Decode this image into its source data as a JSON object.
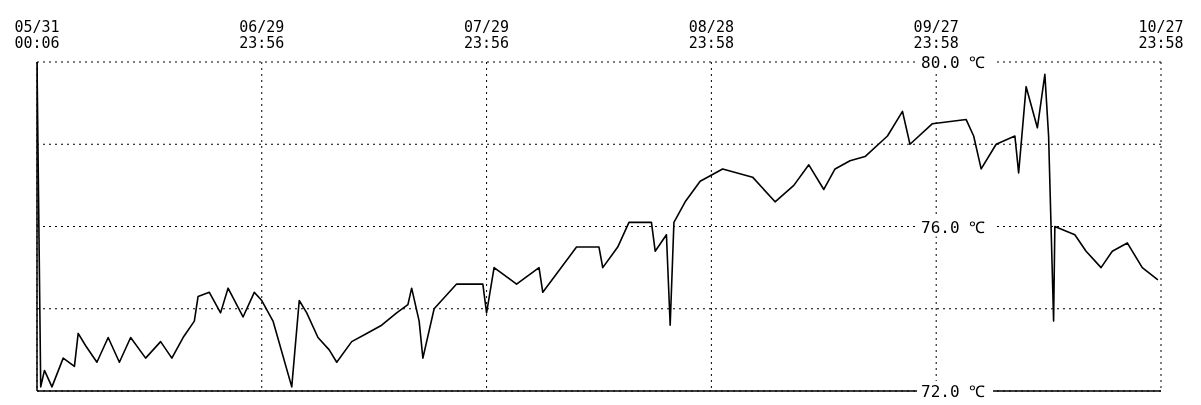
{
  "chart_data": {
    "type": "line",
    "x": [
      "--05-31T00:06",
      "--05-31T12:00",
      "--06-01T00:00",
      "--06-02T00:00",
      "--06-03T12:00",
      "--06-05T00:00",
      "--06-05T12:00",
      "--06-06T12:00",
      "--06-08T00:00",
      "--06-09T12:00",
      "--06-11T00:00",
      "--06-12T12:00",
      "--06-14T12:00",
      "--06-16T12:00",
      "--06-18T00:00",
      "--06-19T12:00",
      "--06-21T00:00",
      "--06-21T12:00",
      "--06-23T00:00",
      "--06-24T12:00",
      "--06-25T12:00",
      "--06-27T12:00",
      "--06-29T00:00",
      "--06-30T00:00",
      "--07-01T12:00",
      "--07-04T00:00",
      "--07-05T00:00",
      "--07-06T00:00",
      "--07-07T12:00",
      "--07-09T00:00",
      "--07-10T00:00",
      "--07-12T00:00",
      "--07-14T00:00",
      "--07-16T00:00",
      "--07-18T00:00",
      "--07-19T12:00",
      "--07-20T00:00",
      "--07-21T00:00",
      "--07-21T12:00",
      "--07-23T00:00",
      "--07-26T00:00",
      "--07-29T12:00",
      "--07-30T00:00",
      "--07-31T00:00",
      "--08-03T00:00",
      "--08-06T00:00",
      "--08-06T12:00",
      "--08-11T00:00",
      "--08-14T00:00",
      "--08-14T12:00",
      "--08-16T12:00",
      "--08-18T00:00",
      "--08-21T00:00",
      "--08-21T12:00",
      "--08-23T00:00",
      "--08-23T12:00",
      "--08-24T00:00",
      "--08-25T12:00",
      "--08-27T12:00",
      "--08-30T12:00",
      "--09-03T12:00",
      "--09-06T12:00",
      "--09-09T00:00",
      "--09-11T00:00",
      "--09-13T00:00",
      "--09-14T12:00",
      "--09-16T12:00",
      "--09-18T12:00",
      "--09-21T12:00",
      "--09-23T12:00",
      "--09-24T12:00",
      "--09-27T12:00",
      "--10-02T00:00",
      "--10-03T00:00",
      "--10-04T00:00",
      "--10-06T00:00",
      "--10-08T12:00",
      "--10-09T00:00",
      "--10-10T00:00",
      "--10-11T12:00",
      "--10-12T12:00",
      "--10-13T00:00",
      "--10-13T16:00",
      "--10-13T20:00",
      "--10-16T12:00",
      "--10-18T00:00",
      "--10-20T00:00",
      "--10-21T12:00",
      "--10-23T12:00",
      "--10-25T12:00",
      "--10-27T14:00"
    ],
    "series": [
      {
        "color": "#000000",
        "values": [
          80.0,
          72.1,
          72.5,
          72.1,
          72.8,
          72.6,
          73.4,
          73.1,
          72.7,
          73.3,
          72.7,
          73.3,
          72.8,
          73.2,
          72.8,
          73.3,
          73.7,
          74.3,
          74.4,
          73.9,
          74.5,
          73.8,
          74.4,
          74.2,
          73.7,
          72.1,
          74.2,
          73.9,
          73.3,
          73.0,
          72.7,
          73.2,
          73.4,
          73.6,
          73.9,
          74.1,
          74.5,
          73.7,
          72.8,
          74.0,
          74.6,
          74.6,
          73.9,
          75.0,
          74.6,
          75.0,
          74.4,
          75.5,
          75.5,
          75.0,
          75.5,
          76.1,
          76.1,
          75.4,
          75.8,
          73.6,
          76.1,
          76.6,
          77.1,
          77.4,
          77.2,
          76.6,
          77.0,
          77.5,
          76.9,
          77.4,
          77.6,
          77.7,
          78.2,
          78.8,
          78.0,
          78.5,
          78.6,
          78.2,
          77.4,
          78.0,
          78.2,
          77.3,
          79.4,
          78.4,
          79.7,
          78.2,
          73.7,
          76.0,
          75.8,
          75.4,
          75.0,
          75.4,
          75.6,
          75.0,
          74.7
        ]
      }
    ],
    "xlim": [
      "--05-31T00:06",
      "--10-27T23:58"
    ],
    "xticks": [
      {
        "value": "--05-31T00:06",
        "label": "05/31\n00:06"
      },
      {
        "value": "--06-29T23:56",
        "label": "06/29\n23:56"
      },
      {
        "value": "--07-29T23:56",
        "label": "07/29\n23:56"
      },
      {
        "value": "--08-28T23:58",
        "label": "08/28\n23:58"
      },
      {
        "value": "--09-27T23:58",
        "label": "09/27\n23:58"
      },
      {
        "value": "--10-27T23:58",
        "label": "10/27\n23:58"
      }
    ],
    "ylim": [
      72,
      80
    ],
    "yticks": [
      {
        "value": 72,
        "label": "72.0 ℃"
      },
      {
        "value": 74,
        "label": null
      },
      {
        "value": 76,
        "label": "76.0 ℃"
      },
      {
        "value": 78,
        "label": null
      },
      {
        "value": 80,
        "label": "80.0 ℃"
      }
    ],
    "grid": true
  }
}
